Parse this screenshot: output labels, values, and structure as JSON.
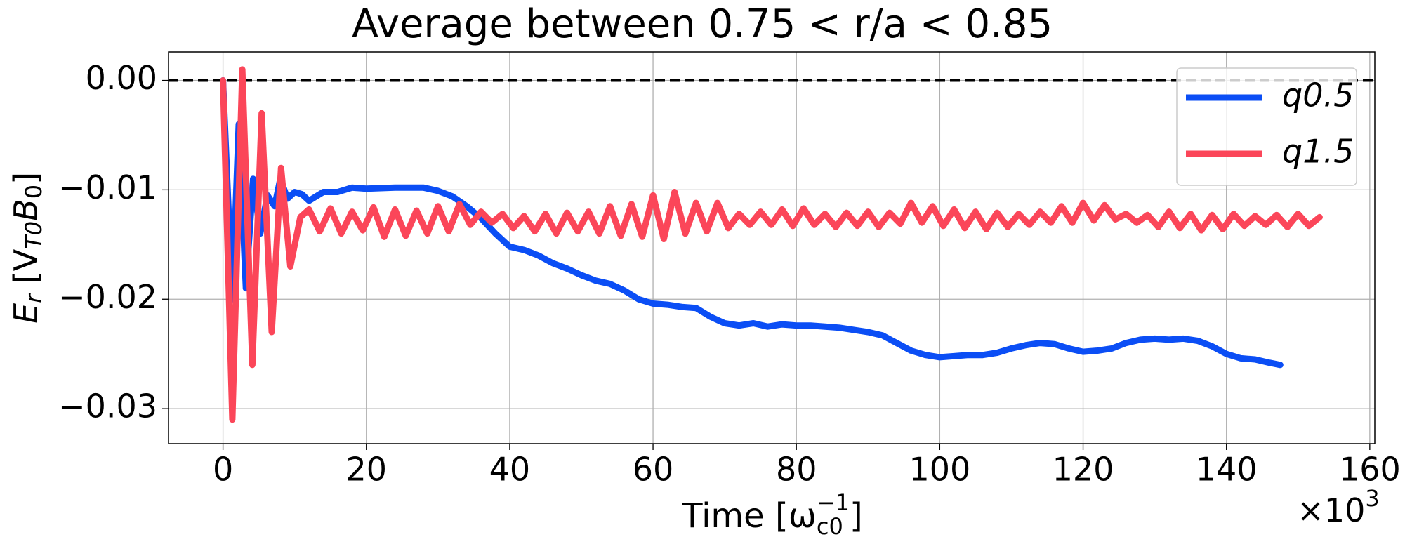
{
  "chart_data": {
    "type": "line",
    "title": "Average between 0.75 < r/a < 0.85",
    "xlabel": [
      "Time [ω",
      "c0",
      "−1",
      "]"
    ],
    "ylabel": [
      "E",
      "r",
      " [V",
      "T0",
      "B",
      "0",
      "]"
    ],
    "x_offset_text": [
      "×10",
      "3"
    ],
    "xlim": [
      -7.6,
      160.7
    ],
    "ylim": [
      -0.0332,
      0.0026
    ],
    "xticks": [
      0,
      20,
      40,
      60,
      80,
      100,
      120,
      140,
      160
    ],
    "yticks": [
      {
        "value": 0.0,
        "label": "0.00"
      },
      {
        "value": -0.01,
        "label": "−0.01"
      },
      {
        "value": -0.02,
        "label": "−0.02"
      },
      {
        "value": -0.03,
        "label": "−0.03"
      }
    ],
    "grid": true,
    "hline": 0,
    "legend": "upper right",
    "series": [
      {
        "name": "q0.5",
        "color": "#0b4ef5",
        "x": [
          0,
          1.3,
          2.2,
          3.2,
          4.2,
          5.2,
          6.2,
          7.2,
          8,
          9,
          10,
          11,
          12,
          14,
          16,
          18,
          20,
          24,
          28,
          30,
          32,
          34,
          36,
          38,
          40,
          42,
          44,
          46,
          48,
          50,
          52,
          54,
          56,
          58,
          60,
          62,
          64,
          66,
          68,
          70,
          72,
          74,
          76,
          78,
          80,
          82,
          84,
          86,
          88,
          90,
          92,
          94,
          96,
          98,
          100,
          102,
          104,
          106,
          108,
          110,
          112,
          114,
          116,
          118,
          120,
          122,
          124,
          126,
          128,
          130,
          132,
          134,
          136,
          138,
          140,
          142,
          144,
          146,
          147.5
        ],
        "values": [
          0,
          -0.02,
          -0.004,
          -0.019,
          -0.009,
          -0.014,
          -0.0105,
          -0.0115,
          -0.009,
          -0.0108,
          -0.0102,
          -0.0104,
          -0.011,
          -0.0102,
          -0.0102,
          -0.0098,
          -0.0099,
          -0.0098,
          -0.0098,
          -0.0101,
          -0.0106,
          -0.0115,
          -0.0126,
          -0.014,
          -0.0152,
          -0.0155,
          -0.016,
          -0.0167,
          -0.0172,
          -0.0178,
          -0.0183,
          -0.0186,
          -0.0192,
          -0.02,
          -0.0204,
          -0.0205,
          -0.0207,
          -0.0208,
          -0.0216,
          -0.0222,
          -0.0224,
          -0.0222,
          -0.0225,
          -0.0223,
          -0.0224,
          -0.0224,
          -0.0225,
          -0.0226,
          -0.0228,
          -0.023,
          -0.0233,
          -0.024,
          -0.0247,
          -0.0251,
          -0.0253,
          -0.0252,
          -0.0251,
          -0.0251,
          -0.0249,
          -0.0245,
          -0.0242,
          -0.024,
          -0.0241,
          -0.0245,
          -0.0248,
          -0.0247,
          -0.0245,
          -0.024,
          -0.0237,
          -0.0236,
          -0.0237,
          -0.0236,
          -0.0238,
          -0.0243,
          -0.025,
          -0.0254,
          -0.0255,
          -0.0258,
          -0.026
        ]
      },
      {
        "name": "q1.5",
        "color": "#fb4659",
        "x": [
          0,
          1.3,
          2.7,
          4.1,
          5.4,
          6.8,
          8.1,
          9.4,
          10.8,
          12,
          13.5,
          15,
          16.5,
          18,
          19.5,
          21,
          22.5,
          24,
          25.5,
          27,
          28.5,
          30,
          31.5,
          33,
          34.5,
          36,
          37.5,
          39,
          40.5,
          42,
          43.5,
          45,
          46.5,
          48,
          49.5,
          51,
          52.5,
          54,
          55.5,
          57,
          58.5,
          60,
          61.5,
          63,
          64.5,
          66,
          67.5,
          69,
          70.5,
          72,
          73.5,
          75,
          76.5,
          78,
          79.5,
          81,
          82.5,
          84,
          85.5,
          87,
          88.5,
          90,
          91.5,
          93,
          94.5,
          96,
          97.5,
          99,
          100.5,
          102,
          103.5,
          105,
          106.5,
          108,
          109.5,
          111,
          112.5,
          114,
          115.5,
          117,
          118.5,
          120,
          121.5,
          123,
          124.5,
          126,
          127.5,
          129,
          130.5,
          132,
          133.5,
          135,
          136.5,
          138,
          139.5,
          141,
          142.5,
          144,
          145.5,
          147,
          148.5,
          150,
          151.5,
          153
        ],
        "values": [
          0,
          -0.031,
          0.001,
          -0.026,
          -0.003,
          -0.023,
          -0.008,
          -0.017,
          -0.0125,
          -0.0118,
          -0.0138,
          -0.0117,
          -0.014,
          -0.012,
          -0.0137,
          -0.0116,
          -0.0143,
          -0.0118,
          -0.0142,
          -0.0119,
          -0.014,
          -0.0115,
          -0.0138,
          -0.0113,
          -0.0132,
          -0.012,
          -0.013,
          -0.0122,
          -0.0135,
          -0.0124,
          -0.0138,
          -0.0122,
          -0.014,
          -0.0121,
          -0.0138,
          -0.012,
          -0.014,
          -0.0115,
          -0.0142,
          -0.0113,
          -0.0143,
          -0.0105,
          -0.0145,
          -0.0102,
          -0.014,
          -0.0112,
          -0.0138,
          -0.0112,
          -0.0135,
          -0.0122,
          -0.0132,
          -0.012,
          -0.0132,
          -0.0118,
          -0.0133,
          -0.0117,
          -0.0132,
          -0.0122,
          -0.0134,
          -0.0121,
          -0.0133,
          -0.012,
          -0.0134,
          -0.0121,
          -0.0131,
          -0.0112,
          -0.013,
          -0.0115,
          -0.0133,
          -0.0118,
          -0.0135,
          -0.012,
          -0.0136,
          -0.0121,
          -0.0134,
          -0.0122,
          -0.0132,
          -0.012,
          -0.013,
          -0.0115,
          -0.013,
          -0.0112,
          -0.0128,
          -0.0114,
          -0.0127,
          -0.0122,
          -0.013,
          -0.0123,
          -0.0134,
          -0.012,
          -0.0135,
          -0.0122,
          -0.0137,
          -0.0123,
          -0.0136,
          -0.0122,
          -0.0133,
          -0.0124,
          -0.0132,
          -0.0123,
          -0.0134,
          -0.0122,
          -0.0133,
          -0.0125
        ]
      }
    ]
  }
}
